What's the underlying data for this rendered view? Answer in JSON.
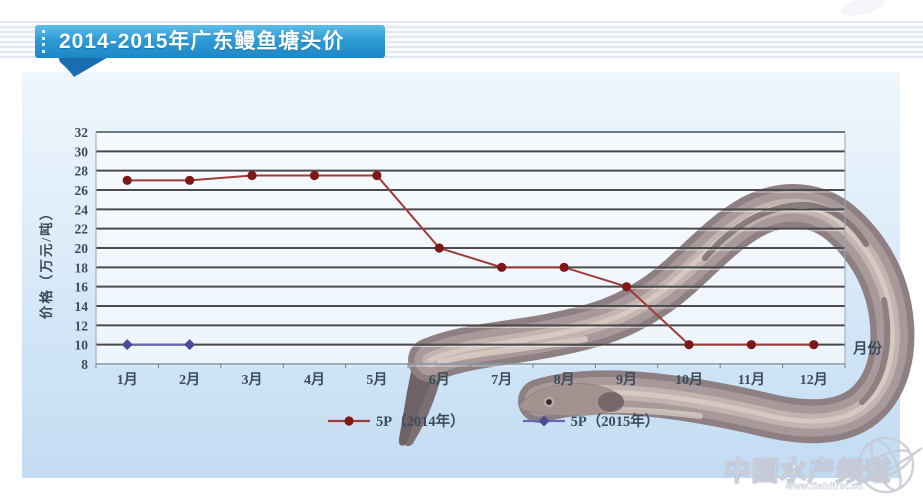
{
  "header": {
    "title": "2014-2015年广东鳗鱼塘头价"
  },
  "chart_data": {
    "type": "line",
    "title": "2014-2015年广东鳗鱼塘头价",
    "categories": [
      "1月",
      "2月",
      "3月",
      "4月",
      "5月",
      "6月",
      "7月",
      "8月",
      "9月",
      "10月",
      "11月",
      "12月"
    ],
    "series": [
      {
        "name": "5P（2014年）",
        "line_color": "#a03c38",
        "marker_color": "#7e1818",
        "marker": "circle",
        "values": [
          27,
          27,
          27.5,
          27.5,
          27.5,
          20,
          18,
          18,
          16,
          10,
          10,
          10
        ]
      },
      {
        "name": "5P（2015年）",
        "line_color": "#6868ad",
        "marker_color": "#4c4c96",
        "marker": "diamond",
        "values": [
          10,
          10
        ]
      }
    ],
    "xlabel": "月份",
    "ylabel": "价格（万元/吨）",
    "ylim": [
      8,
      32
    ],
    "yticks": [
      8,
      10,
      12,
      14,
      16,
      18,
      20,
      22,
      24,
      26,
      28,
      30,
      32
    ],
    "grid": true,
    "legend_position": "bottom"
  },
  "watermark": {
    "name": "中国水产频道",
    "url": "www.fishfirst.cn"
  }
}
